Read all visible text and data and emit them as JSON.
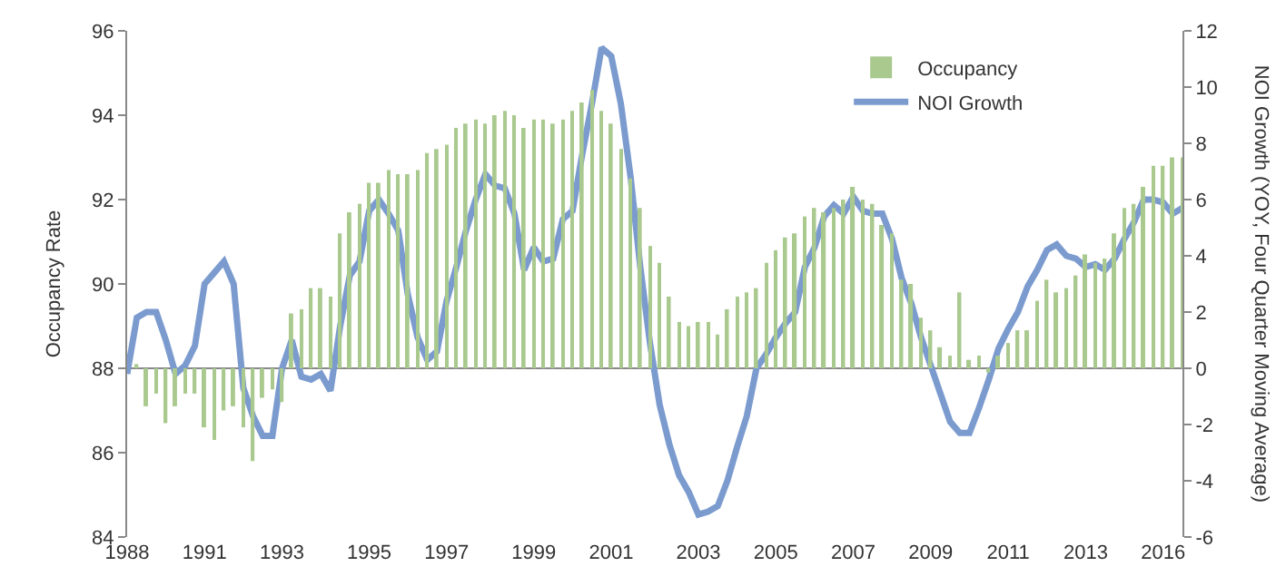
{
  "chart_data": {
    "type": "bar",
    "categories": [
      "1988",
      null,
      null,
      null,
      null,
      null,
      null,
      null,
      "1991",
      null,
      null,
      null,
      null,
      null,
      null,
      null,
      "1993",
      null,
      null,
      null,
      null,
      null,
      null,
      null,
      null,
      "1995",
      null,
      null,
      null,
      null,
      null,
      null,
      null,
      "1997",
      null,
      null,
      null,
      null,
      null,
      null,
      null,
      null,
      "1999",
      null,
      null,
      null,
      null,
      null,
      null,
      null,
      "2001",
      null,
      null,
      null,
      null,
      null,
      null,
      null,
      null,
      "2003",
      null,
      null,
      null,
      null,
      null,
      null,
      null,
      "2005",
      null,
      null,
      null,
      null,
      null,
      null,
      null,
      "2007",
      null,
      null,
      null,
      null,
      null,
      null,
      null,
      "2009",
      null,
      null,
      null,
      null,
      null,
      null,
      null,
      "2011",
      null,
      null,
      null,
      null,
      null,
      null,
      null,
      "2013",
      null,
      null,
      null,
      null,
      null,
      null,
      null,
      "2016",
      null,
      null
    ],
    "series": [
      {
        "name": "Occupancy",
        "color": "#a9c98f",
        "base": [
          null,
          88,
          88,
          88,
          88,
          88,
          88,
          88,
          88,
          88,
          88,
          88,
          88,
          88,
          88,
          88,
          88,
          88,
          88,
          88,
          88,
          88,
          88,
          88,
          88,
          88,
          88,
          88,
          88,
          88,
          88,
          88,
          88,
          88,
          88,
          88,
          88,
          88,
          88,
          88,
          88,
          88,
          88,
          88,
          88,
          88,
          88,
          88,
          88,
          88,
          88,
          88,
          88,
          88,
          88,
          88,
          88,
          88,
          88,
          88,
          88,
          88,
          88,
          88,
          88,
          88,
          88,
          88,
          88,
          88,
          88,
          88,
          88,
          88,
          88,
          88,
          88,
          88,
          88,
          88,
          88,
          88,
          88,
          88,
          88,
          88,
          88,
          88,
          88,
          88,
          88,
          88,
          88,
          88,
          88,
          88,
          88,
          88,
          88,
          88,
          88,
          88,
          88,
          88,
          88,
          88,
          88,
          88,
          88,
          88
        ],
        "values": [
          null,
          0.1,
          -0.9,
          -0.6,
          -1.3,
          -0.9,
          -0.6,
          -0.6,
          -1.4,
          -1.7,
          -1.0,
          -0.9,
          -1.4,
          -2.2,
          -0.7,
          -0.5,
          -0.8,
          1.3,
          1.4,
          1.9,
          1.9,
          1.7,
          3.2,
          3.7,
          3.9,
          4.4,
          4.4,
          4.7,
          4.6,
          4.6,
          4.7,
          5.1,
          5.2,
          5.3,
          5.7,
          5.8,
          5.9,
          5.8,
          6.0,
          6.1,
          6.0,
          5.7,
          5.9,
          5.9,
          5.8,
          5.9,
          6.1,
          6.3,
          6.6,
          6.1,
          5.8,
          5.2,
          4.5,
          3.8,
          2.9,
          2.5,
          1.7,
          1.1,
          1.0,
          1.1,
          1.1,
          0.8,
          1.4,
          1.7,
          1.8,
          1.9,
          2.5,
          2.8,
          3.1,
          3.2,
          3.6,
          3.8,
          3.7,
          3.8,
          4.0,
          4.3,
          4.0,
          3.9,
          3.4,
          3.2,
          2.1,
          2.0,
          1.2,
          0.9,
          0.5,
          0.3,
          1.8,
          0.2,
          0.3,
          -0.1,
          0.3,
          0.6,
          0.9,
          0.9,
          1.6,
          2.1,
          1.8,
          1.9,
          2.2,
          2.7,
          2.5,
          2.6,
          3.2,
          3.8,
          3.9,
          4.3,
          4.8,
          4.8,
          5.0,
          5.0
        ]
      },
      {
        "name": "NOI Growth",
        "type": "line",
        "axis": "y2",
        "color": "#7b9bcf",
        "values": [
          -0.2,
          1.8,
          2.0,
          2.0,
          1.0,
          -0.2,
          0.1,
          0.8,
          3.0,
          3.4,
          3.8,
          3.0,
          -0.7,
          -1.7,
          -2.4,
          -2.4,
          0.0,
          1.0,
          -0.3,
          -0.4,
          -0.2,
          -0.8,
          1.5,
          3.3,
          3.8,
          5.6,
          6.0,
          5.5,
          4.9,
          2.6,
          1.1,
          0.3,
          0.6,
          2.4,
          3.6,
          4.9,
          6.0,
          6.9,
          6.5,
          6.4,
          5.5,
          3.5,
          4.3,
          3.8,
          3.9,
          5.3,
          5.6,
          7.6,
          9.4,
          11.4,
          11.1,
          9.4,
          6.8,
          3.6,
          0.9,
          -1.3,
          -2.7,
          -3.8,
          -4.4,
          -5.2,
          -5.1,
          -4.9,
          -4.0,
          -2.8,
          -1.7,
          0.0,
          0.5,
          1.1,
          1.6,
          2.0,
          3.6,
          4.3,
          5.4,
          5.8,
          5.5,
          6.1,
          5.6,
          5.5,
          5.5,
          4.6,
          3.2,
          2.3,
          1.1,
          0.1,
          -0.9,
          -1.9,
          -2.3,
          -2.3,
          -1.4,
          -0.4,
          0.7,
          1.4,
          2.0,
          2.9,
          3.5,
          4.2,
          4.4,
          4.0,
          3.9,
          3.6,
          3.7,
          3.5,
          3.9,
          4.6,
          5.2,
          6.0,
          6.0,
          5.9,
          5.5,
          5.7
        ]
      }
    ],
    "ylabel": "Occupancy Rate",
    "y2label": "NOI Growth (YOY, Four Quarter Moving Average)",
    "ylim": [
      84,
      96
    ],
    "yticks": [
      84,
      86,
      88,
      90,
      92,
      94,
      96
    ],
    "y2lim": [
      -6,
      12
    ],
    "y2ticks": [
      -6,
      -4,
      -2,
      0,
      2,
      4,
      6,
      8,
      10,
      12
    ],
    "ref_lines": [
      {
        "axis": "y",
        "value": 88,
        "color": "#888888"
      }
    ],
    "legend": "top right",
    "grid": false,
    "marker": "none",
    "line_style": "solid"
  }
}
